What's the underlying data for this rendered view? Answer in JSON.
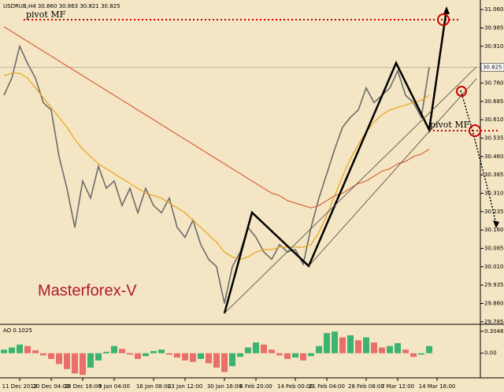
{
  "chart_data": [
    {
      "type": "line",
      "title": "USDRUB,H4 30.860 30.863 30.821 30.825",
      "annotations": [
        "pivot MF",
        "pivot MF",
        "Masterforex-V"
      ],
      "categories": [
        null,
        null,
        "11 Dec 2012",
        null,
        null,
        null,
        "20 Dec 04:00",
        null,
        null,
        null,
        "28 Dec 16:00",
        null,
        null,
        null,
        "9 Jan 04:00",
        null,
        null,
        null,
        null,
        "16 Jan 08:00",
        null,
        null,
        null,
        "23 Jan 12:00",
        null,
        null,
        null,
        null,
        "30 Jan 16:00",
        null,
        null,
        null,
        "6 Feb 20:00",
        null,
        null,
        null,
        null,
        "14 Feb 00:00",
        null,
        null,
        null,
        "21 Feb 04:00",
        null,
        null,
        null,
        null,
        "28 Feb 08:00",
        null,
        null,
        null,
        "7 Mar 12:00",
        null,
        null,
        null,
        null,
        "14 Mar 16:00",
        null,
        null,
        null,
        null,
        null
      ],
      "series": [
        {
          "color": "#6b6b6b",
          "values": [
            30.71,
            30.78,
            30.91,
            30.84,
            30.78,
            30.68,
            30.65,
            30.46,
            30.33,
            30.17,
            30.36,
            30.29,
            30.42,
            30.33,
            30.36,
            30.26,
            30.33,
            30.23,
            30.33,
            30.26,
            30.23,
            30.29,
            30.17,
            30.13,
            30.2,
            30.1,
            30.04,
            30.01,
            29.86,
            30.01,
            30.07,
            30.17,
            30.13,
            30.07,
            30.04,
            30.1,
            30.07,
            30.08,
            30.02,
            30.17,
            30.29,
            30.39,
            30.49,
            30.58,
            30.62,
            30.65,
            30.74,
            30.68,
            30.71,
            30.74,
            30.81,
            30.71,
            30.68,
            30.62,
            30.825,
            null,
            null,
            null,
            null,
            null,
            null
          ]
        },
        {
          "color": "#e8a317",
          "values": [
            30.79,
            30.8,
            30.8,
            30.78,
            30.74,
            30.7,
            30.66,
            30.62,
            30.58,
            30.53,
            30.49,
            30.46,
            30.43,
            30.41,
            30.39,
            30.37,
            30.35,
            30.33,
            30.31,
            30.3,
            30.29,
            30.27,
            30.25,
            30.23,
            30.2,
            30.17,
            30.14,
            30.11,
            30.07,
            30.05,
            30.04,
            30.05,
            30.07,
            30.08,
            30.08,
            30.09,
            30.09,
            30.09,
            30.09,
            30.1,
            30.15,
            30.22,
            30.3,
            30.38,
            30.45,
            30.51,
            30.56,
            30.6,
            30.63,
            30.65,
            30.66,
            30.67,
            30.68,
            30.69,
            30.71,
            null,
            null,
            null,
            null,
            null,
            null
          ]
        },
        {
          "color": "#d9603b",
          "values": [
            30.99,
            30.97,
            30.95,
            30.93,
            30.91,
            30.89,
            30.87,
            30.85,
            30.83,
            30.81,
            30.79,
            30.77,
            30.75,
            30.73,
            30.71,
            30.69,
            30.67,
            30.65,
            30.63,
            30.61,
            30.59,
            30.57,
            30.55,
            30.53,
            30.51,
            30.49,
            30.47,
            30.45,
            30.43,
            30.41,
            30.39,
            30.37,
            30.35,
            30.33,
            30.31,
            30.3,
            30.28,
            30.27,
            30.26,
            30.25,
            30.26,
            30.28,
            30.3,
            30.31,
            30.33,
            30.35,
            30.36,
            30.38,
            30.4,
            30.41,
            30.43,
            30.44,
            30.46,
            30.47,
            30.49,
            null,
            null,
            null,
            null,
            null,
            null
          ]
        }
      ],
      "price_marker": {
        "value": 30.825,
        "label": "30.825"
      },
      "ylim": [
        29.778,
        31.083
      ],
      "yticks": [
        {
          "value": 31.06,
          "label": "31.060"
        },
        {
          "value": 30.985,
          "label": "30.985"
        },
        {
          "value": 30.91,
          "label": "30.910"
        },
        {
          "value": 30.76,
          "label": "30.760"
        },
        {
          "value": 30.685,
          "label": "30.685"
        },
        {
          "value": 30.61,
          "label": "30.610"
        },
        {
          "value": 30.535,
          "label": "30.535"
        },
        {
          "value": 30.46,
          "label": "30.460"
        },
        {
          "value": 30.385,
          "label": "30.385"
        },
        {
          "value": 30.31,
          "label": "30.310"
        },
        {
          "value": 30.235,
          "label": "30.235"
        },
        {
          "value": 30.16,
          "label": "30.160"
        },
        {
          "value": 30.085,
          "label": "30.085"
        },
        {
          "value": 30.01,
          "label": "30.010"
        },
        {
          "value": 29.935,
          "label": "29.935"
        },
        {
          "value": 29.86,
          "label": "29.860"
        },
        {
          "value": 29.785,
          "label": "29.785"
        }
      ]
    },
    {
      "type": "bar",
      "title": "AO 0.1025",
      "up_color": "#3cb371",
      "down_color": "#e8706a",
      "values": [
        0.05,
        0.08,
        0.12,
        0.1,
        0.04,
        -0.03,
        -0.08,
        -0.15,
        -0.22,
        -0.28,
        -0.3,
        -0.2,
        -0.1,
        0.02,
        0.1,
        0.06,
        -0.02,
        -0.08,
        -0.04,
        0.03,
        0.05,
        -0.02,
        -0.06,
        -0.1,
        -0.12,
        -0.08,
        -0.14,
        -0.2,
        -0.26,
        -0.18,
        -0.05,
        0.08,
        0.15,
        0.12,
        0.05,
        -0.03,
        -0.08,
        -0.06,
        -0.1,
        -0.04,
        0.1,
        0.28,
        0.3,
        0.22,
        0.25,
        0.18,
        0.22,
        0.15,
        0.08,
        0.1,
        0.14,
        0.05,
        -0.05,
        -0.02,
        0.1,
        null,
        null,
        null,
        null,
        null,
        null
      ],
      "ylim": [
        -0.32,
        0.38
      ],
      "yticks": [
        {
          "value": 0.3048,
          "label": "0.3048"
        },
        {
          "value": 0,
          "label": "0.00"
        }
      ]
    }
  ]
}
